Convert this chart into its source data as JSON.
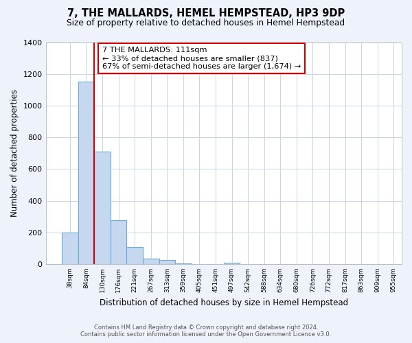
{
  "title": "7, THE MALLARDS, HEMEL HEMPSTEAD, HP3 9DP",
  "subtitle": "Size of property relative to detached houses in Hemel Hempstead",
  "xlabel": "Distribution of detached houses by size in Hemel Hempstead",
  "ylabel": "Number of detached properties",
  "bar_values": [
    200,
    1150,
    710,
    275,
    110,
    35,
    25,
    5,
    0,
    0,
    10,
    0,
    0,
    0,
    0,
    0,
    0,
    0,
    0,
    0
  ],
  "bin_labels": [
    "38sqm",
    "84sqm",
    "130sqm",
    "176sqm",
    "221sqm",
    "267sqm",
    "313sqm",
    "359sqm",
    "405sqm",
    "451sqm",
    "497sqm",
    "542sqm",
    "588sqm",
    "634sqm",
    "680sqm",
    "726sqm",
    "772sqm",
    "817sqm",
    "863sqm",
    "909sqm",
    "955sqm"
  ],
  "bar_color": "#c5d8f0",
  "bar_edge_color": "#6aaad4",
  "vline_color": "#cc0000",
  "annotation_text": "7 THE MALLARDS: 111sqm\n← 33% of detached houses are smaller (837)\n67% of semi-detached houses are larger (1,674) →",
  "annotation_box_color": "#ffffff",
  "annotation_box_edge": "#cc0000",
  "ylim": [
    0,
    1400
  ],
  "yticks": [
    0,
    200,
    400,
    600,
    800,
    1000,
    1200,
    1400
  ],
  "footer_line1": "Contains HM Land Registry data © Crown copyright and database right 2024.",
  "footer_line2": "Contains public sector information licensed under the Open Government Licence v3.0.",
  "background_color": "#eef2fb",
  "plot_bg_color": "#ffffff",
  "grid_color": "#c8d4e8"
}
